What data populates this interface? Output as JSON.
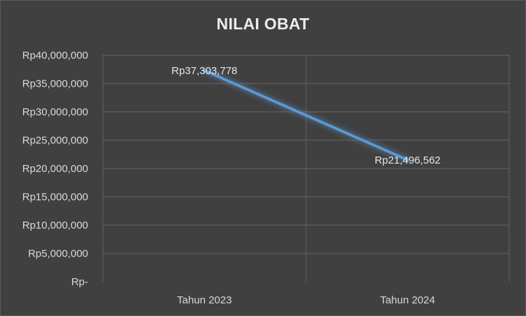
{
  "chart_data": {
    "type": "line",
    "title": "NILAI OBAT",
    "xlabel": "",
    "ylabel": "",
    "categories": [
      "Tahun 2023",
      "Tahun 2024"
    ],
    "series": [
      {
        "values": [
          37303778,
          21496562
        ],
        "data_labels": [
          "Rp37,303,778",
          "Rp21,496,562"
        ],
        "color": "#5b9bd5"
      }
    ],
    "ylim": [
      0,
      40000000
    ],
    "yticks": [
      0,
      5000000,
      10000000,
      15000000,
      20000000,
      25000000,
      30000000,
      35000000,
      40000000
    ],
    "ytick_labels": [
      "Rp-",
      "Rp5,000,000",
      "Rp10,000,000",
      "Rp15,000,000",
      "Rp20,000,000",
      "Rp25,000,000",
      "Rp30,000,000",
      "Rp35,000,000",
      "Rp40,000,000"
    ],
    "grid": true,
    "legend": "none",
    "colors": {
      "background": "#404040",
      "gridline": "#5a5a5a",
      "text": "#d9d9d9",
      "title": "#ececec"
    }
  }
}
